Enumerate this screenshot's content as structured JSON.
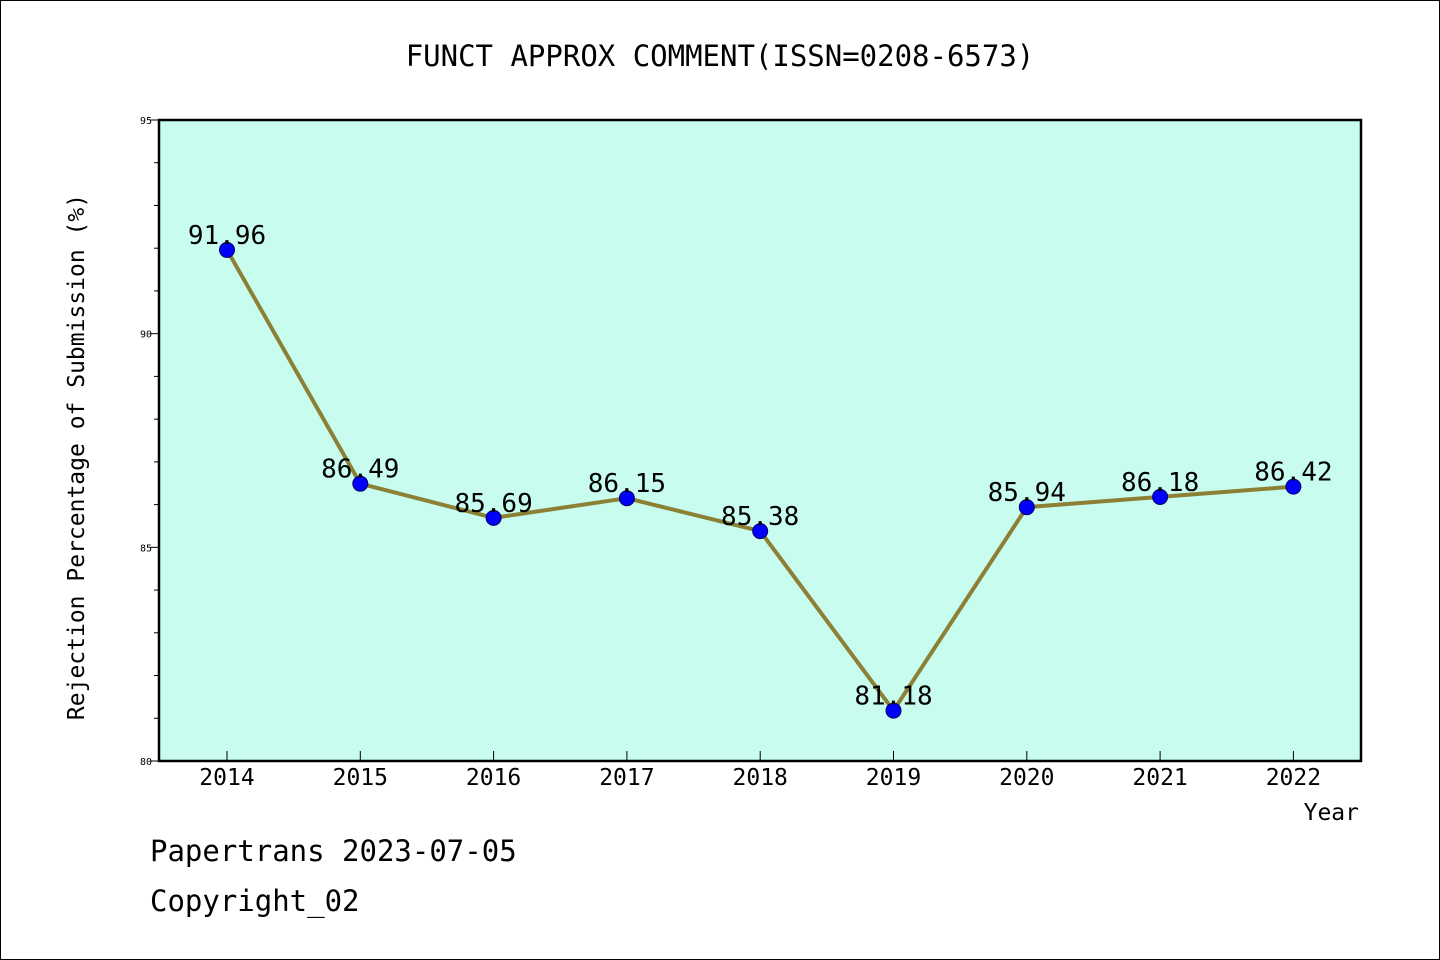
{
  "footer": {
    "line1": "Papertrans 2023-07-05",
    "line2": "Copyright_02"
  },
  "chart_data": {
    "type": "line",
    "title": "FUNCT APPROX COMMENT(ISSN=0208-6573)",
    "xlabel": "Year",
    "ylabel": "Rejection Percentage of Submission (%)",
    "categories": [
      "2014",
      "2015",
      "2016",
      "2017",
      "2018",
      "2019",
      "2020",
      "2021",
      "2022"
    ],
    "series": [
      {
        "values": [
          91.96,
          86.49,
          85.69,
          86.15,
          85.38,
          81.18,
          85.94,
          86.18,
          86.42
        ]
      }
    ],
    "data_labels": [
      "91.96",
      "86.49",
      "85.69",
      "86.15",
      "85.38",
      "81.18",
      "85.94",
      "86.18",
      "86.42"
    ],
    "ylim": [
      80,
      95
    ],
    "yticks": [
      "80",
      "85",
      "90",
      "95"
    ],
    "grid": false,
    "legend": "none",
    "colors": {
      "plot_background": "#c8fcee",
      "line": "#8c8035",
      "marker": "#0000ff",
      "axis": "#000000",
      "page_background": "#ffffff"
    }
  }
}
